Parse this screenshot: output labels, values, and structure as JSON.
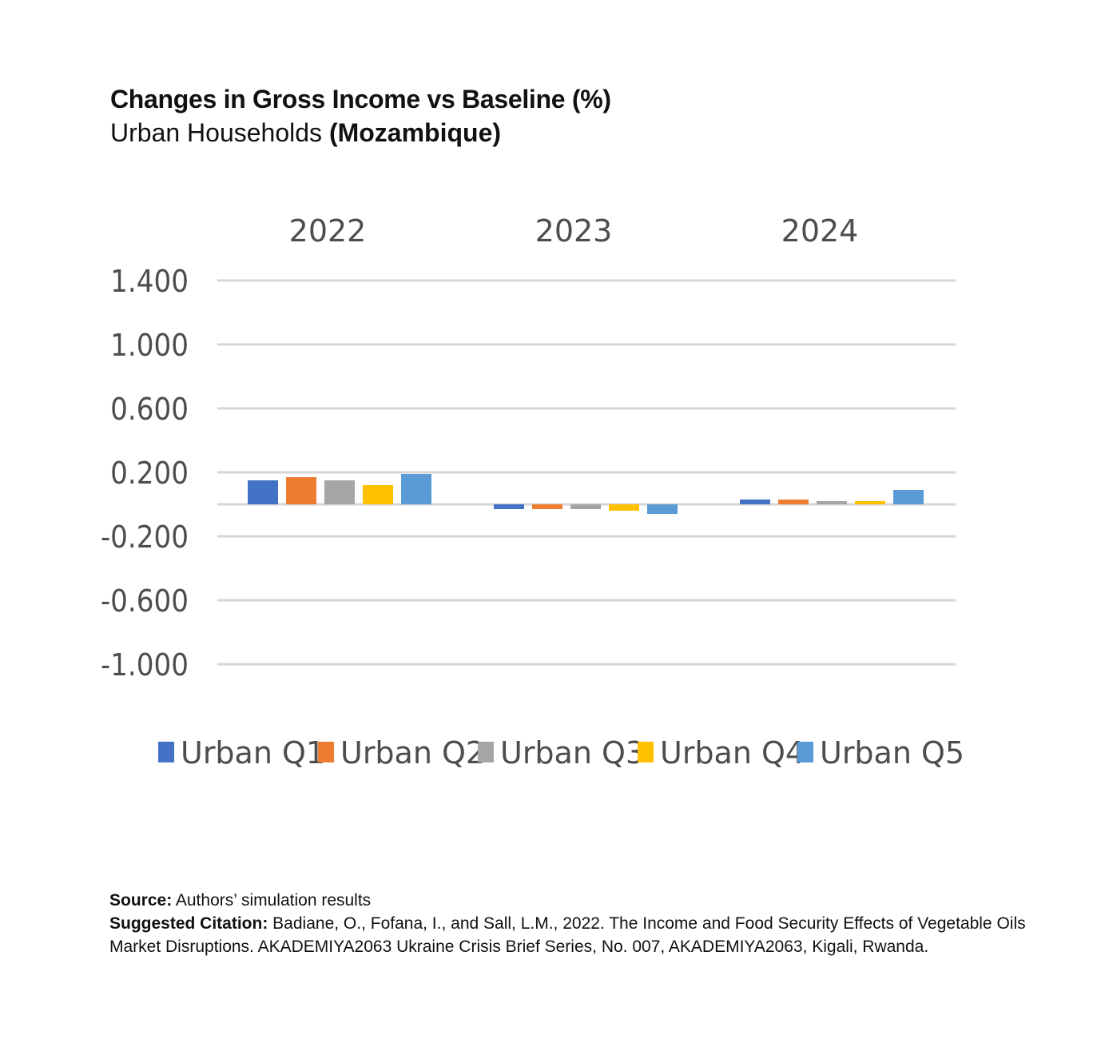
{
  "header": {
    "title": "Changes in Gross Income vs Baseline (%)",
    "subtitle_main": "Urban Households ",
    "subtitle_bold": "(Mozambique)"
  },
  "chart_data": {
    "type": "bar",
    "categories": [
      "2022",
      "2023",
      "2024"
    ],
    "category_axis_position": "top",
    "y_ticks": [
      "1.400",
      "1.000",
      "0.600",
      "0.200",
      "-0.200",
      "-0.600",
      "-1.000"
    ],
    "y_tick_values": [
      1.4,
      1.0,
      0.6,
      0.2,
      -0.2,
      -0.6,
      -1.0
    ],
    "ylim": [
      -1.0,
      1.4
    ],
    "grid": true,
    "legend_position": "bottom",
    "series": [
      {
        "name": "Urban Q1",
        "color": "#4472C4",
        "values": [
          0.15,
          -0.03,
          0.03
        ]
      },
      {
        "name": "Urban Q2",
        "color": "#ED7D31",
        "values": [
          0.17,
          -0.03,
          0.03
        ]
      },
      {
        "name": "Urban Q3",
        "color": "#A5A5A5",
        "values": [
          0.15,
          -0.03,
          0.02
        ]
      },
      {
        "name": "Urban Q4",
        "color": "#FFC000",
        "values": [
          0.12,
          -0.04,
          0.02
        ]
      },
      {
        "name": "Urban Q5",
        "color": "#5B9BD5",
        "values": [
          0.19,
          -0.06,
          0.09
        ]
      }
    ]
  },
  "notes": {
    "source_label": "Source:",
    "source_text": " Authors’ simulation results",
    "citation_label": "Suggested Citation:",
    "citation_text": " Badiane, O., Fofana, I., and Sall, L.M., 2022. The Income and Food Security Effects of Vegetable Oils Market Disruptions. AKADEMIYA2063 Ukraine Crisis Brief Series, No. 007, AKADEMIYA2063, Kigali, Rwanda."
  }
}
